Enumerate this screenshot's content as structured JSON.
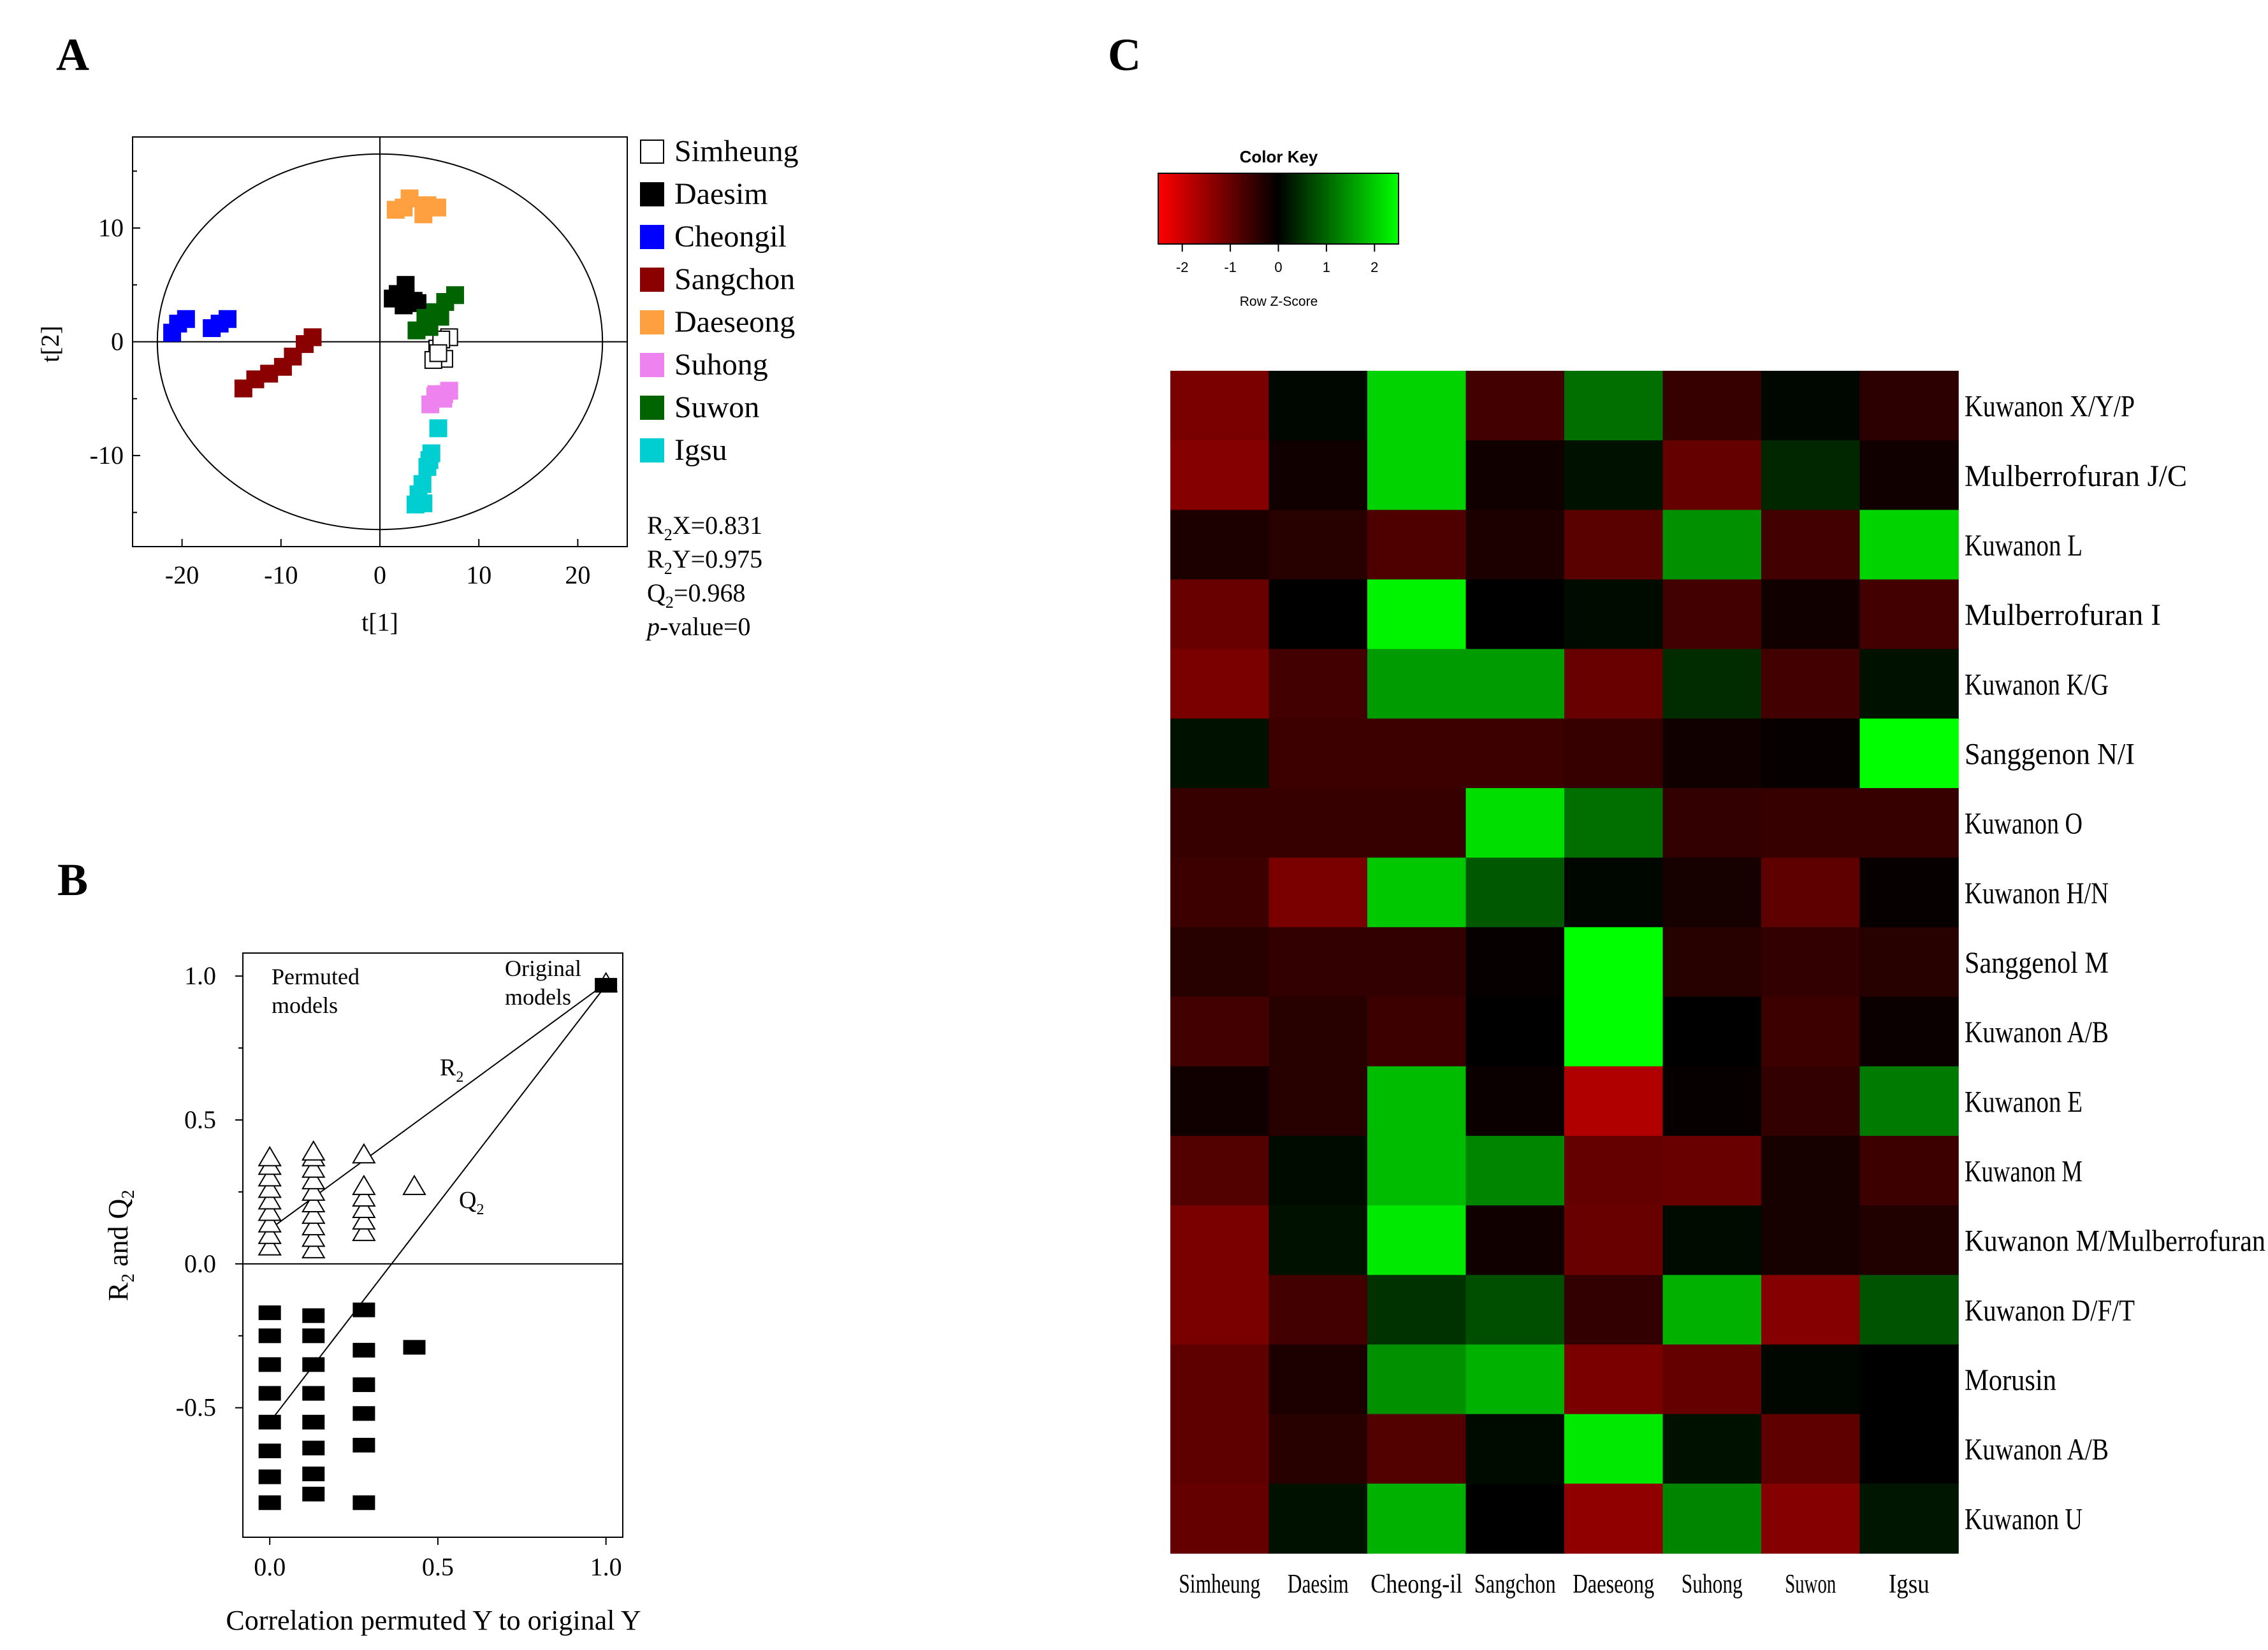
{
  "panels": {
    "A": {
      "label": "A",
      "chart_data": {
        "type": "scatter",
        "title": "",
        "xlabel": "t[1]",
        "ylabel": "t[2]",
        "xlim": [
          -25,
          25
        ],
        "ylim": [
          -18,
          18
        ],
        "x_ticks": [
          -20,
          -10,
          0,
          10,
          20
        ],
        "y_ticks": [
          -10,
          0,
          10
        ],
        "x_tick_labels": [
          "-20",
          "-10",
          "0",
          "10",
          "20"
        ],
        "y_tick_labels": [
          "-10",
          "0",
          "10"
        ],
        "ellipse": {
          "rx": 22.5,
          "ry": 16.5
        },
        "series": [
          {
            "name": "Simheung",
            "color": "#ffffff",
            "outline": "#000000",
            "points": [
              [
                5.8,
                -0.6
              ],
              [
                6.5,
                -1.5
              ],
              [
                5.4,
                -1.6
              ],
              [
                7.0,
                0.4
              ],
              [
                6.2,
                0.2
              ],
              [
                5.9,
                -1.0
              ]
            ]
          },
          {
            "name": "Daesim",
            "color": "#000000",
            "outline": "#000000",
            "points": [
              [
                1.3,
                3.8
              ],
              [
                2.6,
                5.0
              ],
              [
                3.4,
                3.6
              ],
              [
                1.8,
                4.2
              ],
              [
                2.4,
                3.2
              ],
              [
                3.8,
                3.4
              ]
            ]
          },
          {
            "name": "Cheongil",
            "color": "#0000ff",
            "outline": "#0000ff",
            "points": [
              [
                -21.0,
                0.8
              ],
              [
                -20.4,
                1.6
              ],
              [
                -19.6,
                2.0
              ],
              [
                -17.0,
                1.2
              ],
              [
                -16.2,
                1.6
              ],
              [
                -15.4,
                2.0
              ]
            ]
          },
          {
            "name": "Sangchon",
            "color": "#8b0000",
            "outline": "#8b0000",
            "points": [
              [
                -13.8,
                -4.1
              ],
              [
                -12.6,
                -3.3
              ],
              [
                -11.2,
                -2.8
              ],
              [
                -9.8,
                -2.2
              ],
              [
                -8.8,
                -1.3
              ],
              [
                -7.6,
                -0.2
              ],
              [
                -6.8,
                0.4
              ]
            ]
          },
          {
            "name": "Daeseong",
            "color": "#ffa040",
            "outline": "#ffa040",
            "points": [
              [
                1.6,
                11.6
              ],
              [
                3.0,
                12.6
              ],
              [
                4.4,
                11.2
              ],
              [
                5.8,
                11.8
              ],
              [
                2.4,
                11.8
              ],
              [
                4.8,
                12.0
              ]
            ]
          },
          {
            "name": "Suhong",
            "color": "#ee82ee",
            "outline": "#ee82ee",
            "points": [
              [
                5.1,
                -5.5
              ],
              [
                5.7,
                -4.6
              ],
              [
                6.4,
                -5.0
              ],
              [
                7.0,
                -4.3
              ],
              [
                5.6,
                -4.8
              ],
              [
                6.5,
                -4.6
              ]
            ]
          },
          {
            "name": "Suwon",
            "color": "#006400",
            "outline": "#006400",
            "points": [
              [
                3.7,
                1.0
              ],
              [
                4.6,
                2.1
              ],
              [
                5.6,
                2.6
              ],
              [
                6.6,
                3.5
              ],
              [
                7.6,
                4.1
              ],
              [
                5.0,
                1.3
              ],
              [
                6.1,
                2.2
              ]
            ]
          },
          {
            "name": "Igsu",
            "color": "#00ced1",
            "outline": "#00ced1",
            "points": [
              [
                5.9,
                -7.6
              ],
              [
                5.2,
                -9.8
              ],
              [
                4.8,
                -11.0
              ],
              [
                4.3,
                -12.5
              ],
              [
                3.9,
                -13.4
              ],
              [
                3.6,
                -14.3
              ],
              [
                4.4,
                -14.2
              ],
              [
                5.0,
                -10.4
              ]
            ]
          }
        ],
        "legend": {
          "position": "right",
          "entries": [
            "Simheung",
            "Daesim",
            "Cheongil",
            "Sangchon",
            "Daeseong",
            "Suhong",
            "Suwon",
            "Igsu"
          ]
        },
        "stats": {
          "r2x": "R2X=0.831",
          "r2y": "R2Y=0.975",
          "q2": "Q2=0.968",
          "p_label": "p",
          "p_value": "-value=0"
        }
      }
    },
    "B": {
      "label": "B",
      "chart_data": {
        "type": "scatter",
        "title": "",
        "xlabel": "Correlation permuted Y to original Y",
        "ylabel": "R2 and Q2",
        "xlim": [
          -0.08,
          1.05
        ],
        "ylim": [
          -0.95,
          1.08
        ],
        "x_ticks": [
          0.0,
          0.5,
          1.0
        ],
        "y_ticks": [
          -0.5,
          0.0,
          0.5,
          1.0
        ],
        "x_tick_labels": [
          "0.0",
          "0.5",
          "1.0"
        ],
        "y_tick_labels": [
          "-0.5",
          "0.0",
          "0.5",
          "1.0"
        ],
        "annotations": {
          "permuted_line1": "Permuted",
          "permuted_line2": "models",
          "original_line1": "Original",
          "original_line2": "models",
          "r2_label": "R2",
          "q2_label": "Q2"
        },
        "series": [
          {
            "name": "R2",
            "marker": "triangle",
            "points": [
              [
                0.0,
                0.06
              ],
              [
                0.0,
                0.1
              ],
              [
                0.0,
                0.14
              ],
              [
                0.0,
                0.18
              ],
              [
                0.0,
                0.22
              ],
              [
                0.0,
                0.26
              ],
              [
                0.0,
                0.3
              ],
              [
                0.0,
                0.34
              ],
              [
                0.0,
                0.37
              ],
              [
                0.13,
                0.05
              ],
              [
                0.13,
                0.09
              ],
              [
                0.13,
                0.13
              ],
              [
                0.13,
                0.17
              ],
              [
                0.13,
                0.21
              ],
              [
                0.13,
                0.25
              ],
              [
                0.13,
                0.29
              ],
              [
                0.13,
                0.33
              ],
              [
                0.13,
                0.37
              ],
              [
                0.13,
                0.39
              ],
              [
                0.28,
                0.11
              ],
              [
                0.28,
                0.15
              ],
              [
                0.28,
                0.19
              ],
              [
                0.28,
                0.23
              ],
              [
                0.28,
                0.27
              ],
              [
                0.28,
                0.38
              ],
              [
                0.43,
                0.27
              ],
              [
                1.0,
                0.975
              ]
            ]
          },
          {
            "name": "Q2",
            "marker": "filled-square",
            "points": [
              [
                0.0,
                -0.83
              ],
              [
                0.0,
                -0.74
              ],
              [
                0.0,
                -0.65
              ],
              [
                0.0,
                -0.55
              ],
              [
                0.0,
                -0.45
              ],
              [
                0.0,
                -0.35
              ],
              [
                0.0,
                -0.25
              ],
              [
                0.0,
                -0.17
              ],
              [
                0.13,
                -0.8
              ],
              [
                0.13,
                -0.73
              ],
              [
                0.13,
                -0.64
              ],
              [
                0.13,
                -0.55
              ],
              [
                0.13,
                -0.45
              ],
              [
                0.13,
                -0.35
              ],
              [
                0.13,
                -0.25
              ],
              [
                0.13,
                -0.18
              ],
              [
                0.28,
                -0.83
              ],
              [
                0.28,
                -0.63
              ],
              [
                0.28,
                -0.52
              ],
              [
                0.28,
                -0.42
              ],
              [
                0.28,
                -0.3
              ],
              [
                0.28,
                -0.16
              ],
              [
                0.43,
                -0.29
              ],
              [
                1.0,
                0.968
              ]
            ]
          }
        ],
        "regression_lines": [
          {
            "name": "R2",
            "from": [
              0.0,
              0.12
            ],
            "to": [
              1.0,
              0.975
            ]
          },
          {
            "name": "Q2",
            "from": [
              0.0,
              -0.55
            ],
            "to": [
              1.0,
              0.968
            ]
          }
        ]
      }
    },
    "C": {
      "label": "C",
      "color_key": {
        "title": "Color Key",
        "xlabel": "Row Z-Score",
        "ticks": [
          -2,
          -1,
          0,
          1,
          2
        ],
        "tick_labels": [
          "-2",
          "-1",
          "0",
          "1",
          "2"
        ],
        "range": [
          -2.5,
          2.5
        ],
        "colors": [
          "#ff0000",
          "#000000",
          "#00ff00"
        ]
      },
      "chart_data": {
        "type": "heatmap",
        "title": "",
        "columns": [
          "Simheung",
          "Daesim",
          "Cheong-il",
          "Sangchon",
          "Daeseong",
          "Suhong",
          "Suwon",
          "Igsu"
        ],
        "rows": [
          "Kuwanon X/Y/P",
          "Mulberrofuran J/C",
          "Kuwanon L",
          "Mulberrofuran I",
          "Kuwanon K/G",
          "Sanggenon N/I",
          "Kuwanon O",
          "Kuwanon H/N",
          "Sanggenol M",
          "Kuwanon A/B",
          "Kuwanon E",
          "Kuwanon M",
          "Kuwanon M/Mulberrofuran U",
          "Kuwanon D/F/T",
          "Morusin",
          "Kuwanon A/B",
          "Kuwanon U"
        ],
        "values": [
          [
            -1.1,
            0.05,
            1.9,
            -0.6,
            1.0,
            -0.5,
            0.05,
            -0.4
          ],
          [
            -1.2,
            -0.15,
            1.9,
            -0.15,
            0.15,
            -0.9,
            0.35,
            -0.15
          ],
          [
            -0.25,
            -0.35,
            -0.7,
            -0.25,
            -0.8,
            1.3,
            -0.6,
            1.9
          ],
          [
            -0.95,
            0.0,
            2.2,
            0.0,
            0.1,
            -0.6,
            -0.15,
            -0.6
          ],
          [
            -1.1,
            -0.6,
            1.4,
            1.4,
            -0.95,
            0.4,
            -0.6,
            0.15
          ],
          [
            0.15,
            -0.55,
            -0.55,
            -0.55,
            -0.5,
            -0.15,
            -0.05,
            2.3
          ],
          [
            -0.5,
            -0.5,
            -0.5,
            2.0,
            1.0,
            -0.45,
            -0.5,
            -0.5
          ],
          [
            -0.55,
            -1.1,
            1.8,
            0.8,
            0.05,
            -0.2,
            -0.85,
            -0.05
          ],
          [
            -0.35,
            -0.45,
            -0.45,
            -0.05,
            2.3,
            -0.35,
            -0.45,
            -0.35
          ],
          [
            -0.6,
            -0.35,
            -0.55,
            0.0,
            2.3,
            0.0,
            -0.55,
            -0.1
          ],
          [
            -0.15,
            -0.35,
            1.7,
            -0.1,
            -1.6,
            -0.05,
            -0.45,
            1.1
          ],
          [
            -0.75,
            0.1,
            1.7,
            1.2,
            -0.9,
            -0.95,
            -0.2,
            -0.55
          ],
          [
            -1.1,
            0.15,
            2.1,
            -0.15,
            -0.95,
            0.1,
            -0.2,
            -0.3
          ],
          [
            -1.1,
            -0.6,
            0.45,
            0.7,
            -0.45,
            1.6,
            -1.2,
            0.75
          ],
          [
            -0.85,
            -0.25,
            1.3,
            1.6,
            -1.1,
            -0.9,
            0.05,
            0.0
          ],
          [
            -0.85,
            -0.35,
            -0.75,
            0.1,
            2.1,
            0.15,
            -0.85,
            0.0
          ],
          [
            -0.9,
            0.15,
            1.6,
            0.0,
            -1.3,
            1.2,
            -1.2,
            0.2
          ]
        ]
      }
    }
  }
}
